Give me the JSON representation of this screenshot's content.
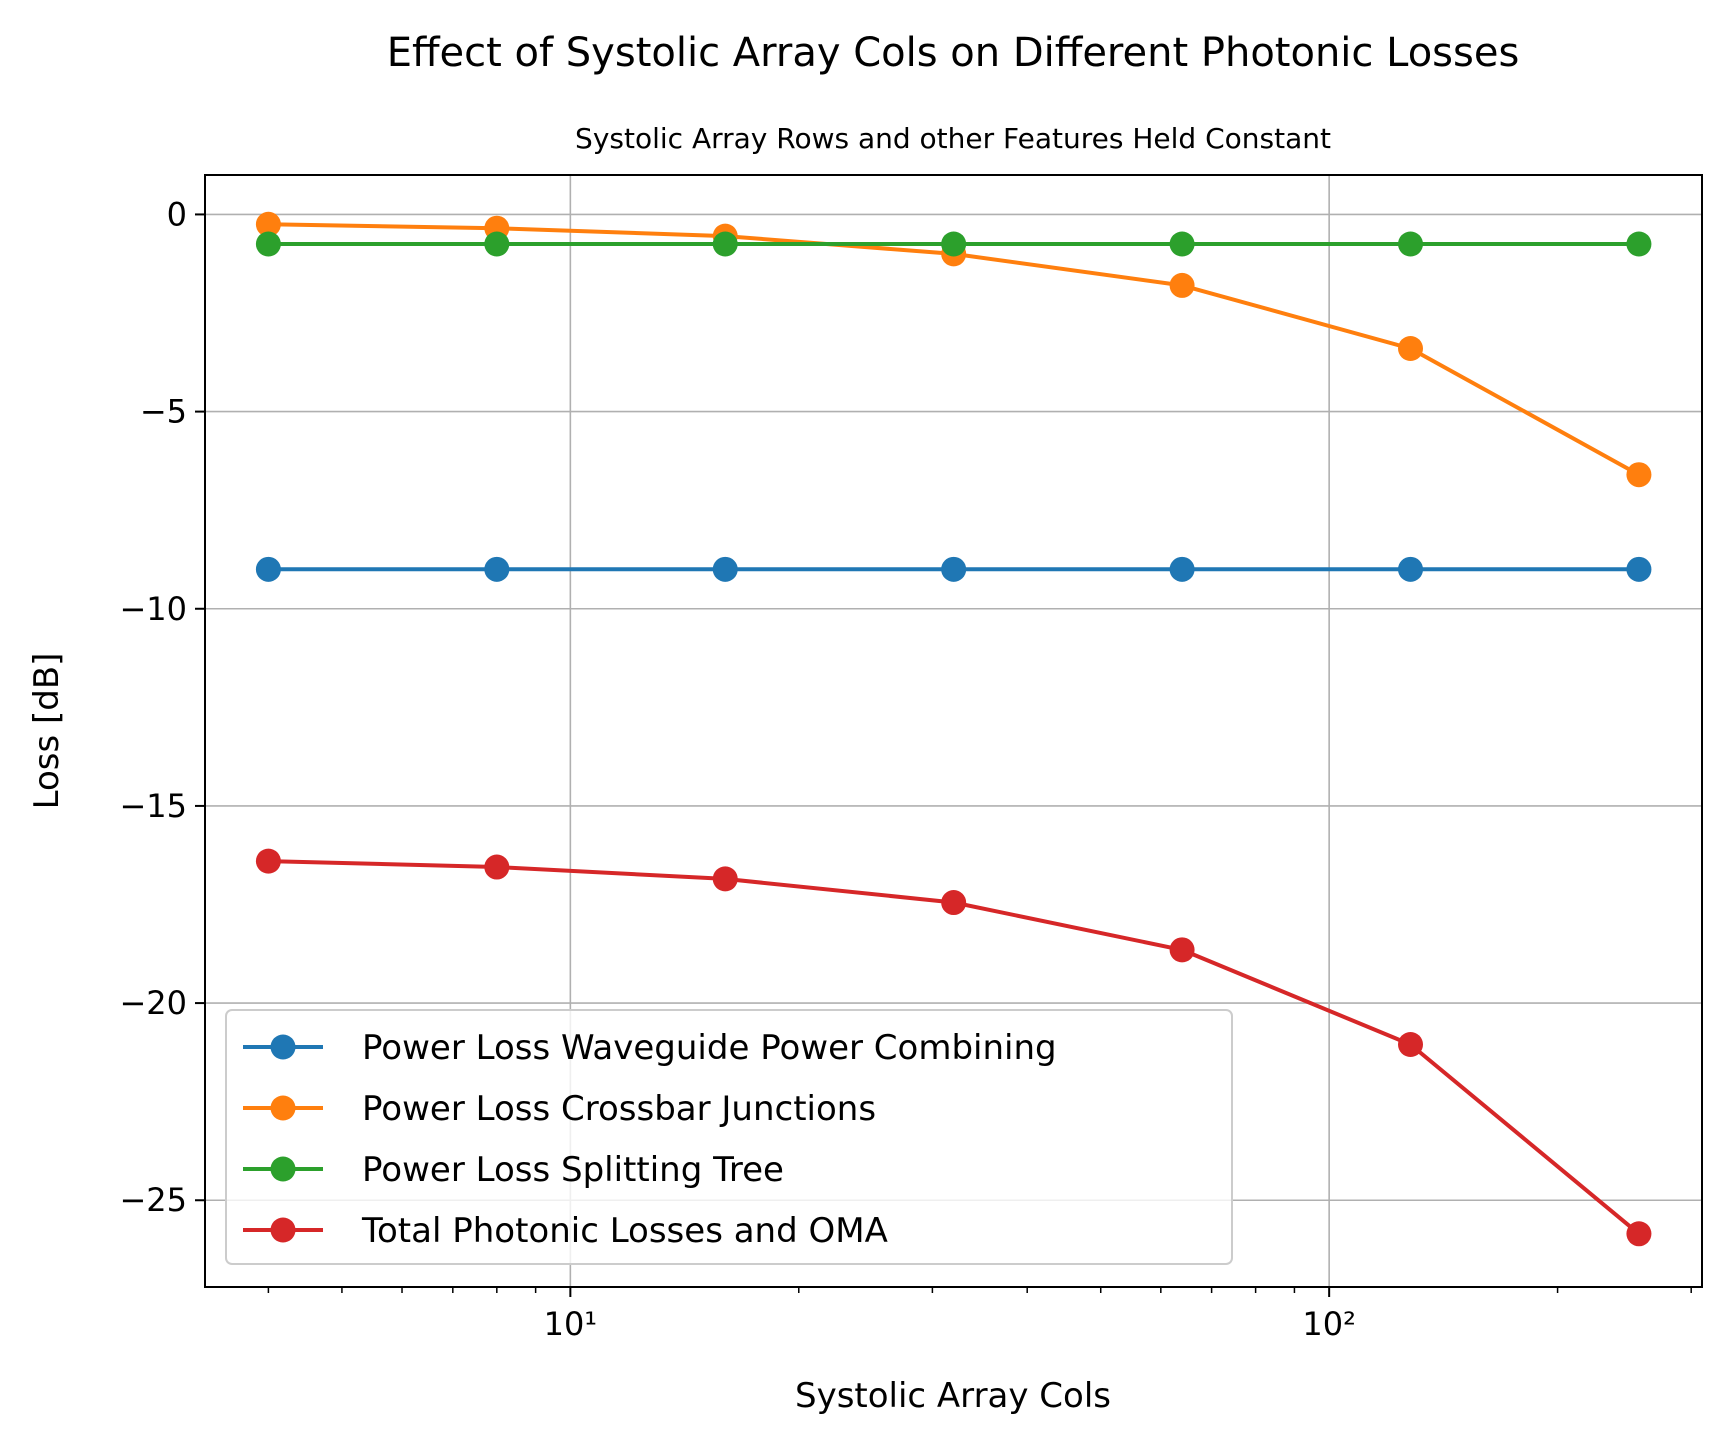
{
  "chart_data": {
    "type": "line",
    "title": "Effect of Systolic Array Cols on Different Photonic Losses",
    "subtitle": "Systolic Array Rows and other Features Held Constant",
    "xlabel": "Systolic Array Cols",
    "ylabel": "Loss [dB]",
    "xscale": "log",
    "xlim": [
      3.3,
      310
    ],
    "ylim": [
      -27.2,
      1.0
    ],
    "x": [
      4,
      8,
      16,
      32,
      64,
      128,
      256
    ],
    "x_major_ticks": [
      10,
      100
    ],
    "x_tick_labels": [
      "10¹",
      "10²"
    ],
    "y_ticks": [
      0,
      -5,
      -10,
      -15,
      -20,
      -25
    ],
    "y_tick_labels": [
      "0",
      "−5",
      "−10",
      "−15",
      "−20",
      "−25"
    ],
    "grid": true,
    "legend_position": "lower-left",
    "series": [
      {
        "name": "Power Loss Waveguide Power Combining",
        "color": "#1f77b4",
        "values": [
          -9.0,
          -9.0,
          -9.0,
          -9.0,
          -9.0,
          -9.0,
          -9.0
        ]
      },
      {
        "name": "Power Loss Crossbar Junctions",
        "color": "#ff7f0e",
        "values": [
          -0.25,
          -0.35,
          -0.55,
          -1.0,
          -1.8,
          -3.4,
          -6.6
        ]
      },
      {
        "name": "Power Loss Splitting Tree",
        "color": "#2ca02c",
        "values": [
          -0.75,
          -0.75,
          -0.75,
          -0.75,
          -0.75,
          -0.75,
          -0.75
        ]
      },
      {
        "name": "Total Photonic Losses and OMA",
        "color": "#d62728",
        "values": [
          -16.4,
          -16.55,
          -16.85,
          -17.45,
          -18.65,
          -21.05,
          -25.85
        ]
      }
    ]
  }
}
